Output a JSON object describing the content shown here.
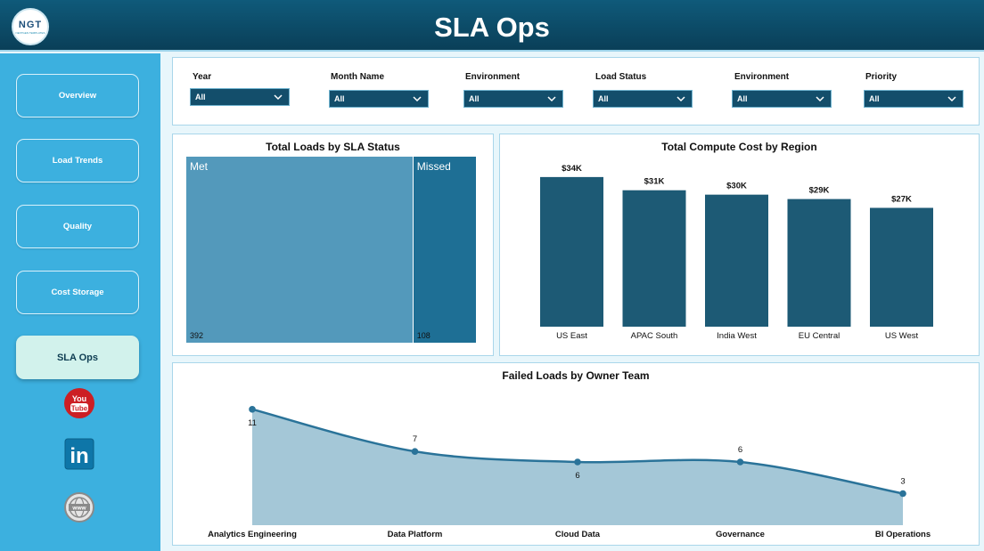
{
  "header": {
    "title": "SLA Ops",
    "logo_text": "NGT",
    "logo_subtext": "NEXTGEN TEMPLATES"
  },
  "sidebar": {
    "items": [
      {
        "label": "Overview",
        "active": false
      },
      {
        "label": "Load Trends",
        "active": false
      },
      {
        "label": "Quality",
        "active": false
      },
      {
        "label": "Cost Storage",
        "active": false
      },
      {
        "label": "SLA Ops",
        "active": true
      }
    ],
    "social": [
      {
        "icon": "youtube-icon",
        "label": "You Tube"
      },
      {
        "icon": "linkedin-icon",
        "label": "in"
      },
      {
        "icon": "website-icon",
        "label": "www"
      }
    ]
  },
  "filters": [
    {
      "label": "Year",
      "value": "All"
    },
    {
      "label": "Month Name",
      "value": "All"
    },
    {
      "label": "Environment",
      "value": "All"
    },
    {
      "label": "Load Status",
      "value": "All"
    },
    {
      "label": "Environment",
      "value": "All"
    },
    {
      "label": "Priority",
      "value": "All"
    }
  ],
  "sla_status": {
    "title": "Total Loads by SLA Status",
    "chart_data": {
      "type": "treemap",
      "categories": [
        "Met",
        "Missed"
      ],
      "values": [
        392,
        108
      ],
      "colors": [
        "#5399bb",
        "#1e6f95"
      ]
    }
  },
  "compute_cost": {
    "title": "Total Compute Cost by Region",
    "chart_data": {
      "type": "bar",
      "categories": [
        "US East",
        "APAC South",
        "India West",
        "EU Central",
        "US West"
      ],
      "values": [
        34,
        31,
        30,
        29,
        27
      ],
      "data_labels": [
        "$34K",
        "$31K",
        "$30K",
        "$29K",
        "$27K"
      ],
      "unit": "K",
      "ylim": [
        0,
        36
      ],
      "color": "#1d5a75"
    }
  },
  "failed_loads": {
    "title": "Failed Loads by Owner Team",
    "chart_data": {
      "type": "area",
      "categories": [
        "Analytics Engineering",
        "Data Platform",
        "Cloud Data",
        "Governance",
        "BI Operations"
      ],
      "values": [
        11,
        7,
        6,
        6,
        3
      ],
      "ylim": [
        0,
        12
      ],
      "line_color": "#2a7399",
      "fill_color": "#a4c7d7"
    }
  }
}
